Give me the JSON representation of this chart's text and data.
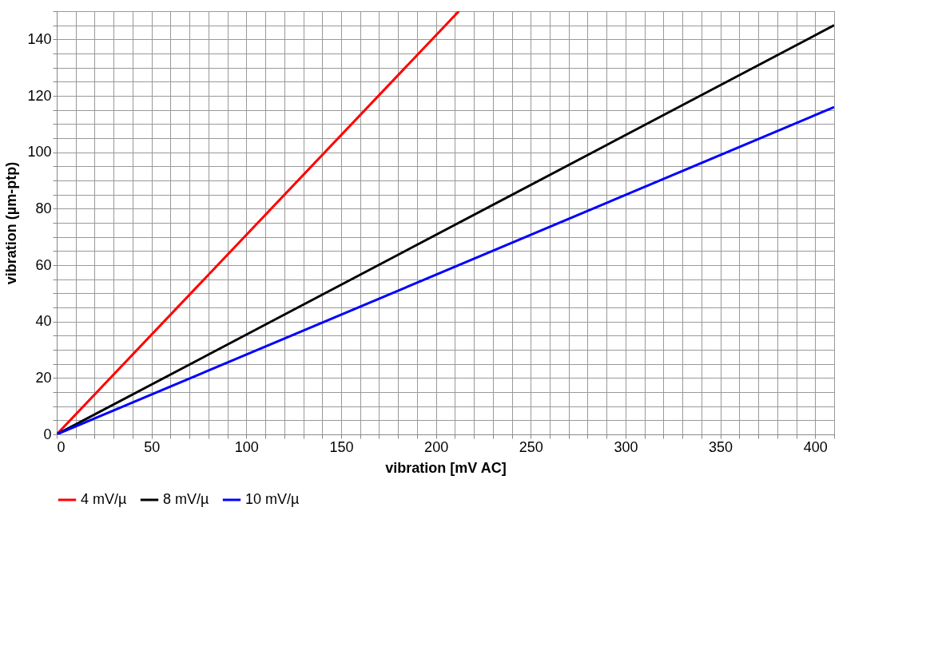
{
  "chart_data": {
    "type": "line",
    "xlabel": "vibration [mV AC]",
    "ylabel": "vibration (µm-ptp)",
    "series": [
      {
        "name": "4 mV/µ",
        "color": "#ff0000",
        "x": [
          0,
          212.1
        ],
        "values": [
          0,
          150
        ]
      },
      {
        "name": "8 mV/µ",
        "color": "#000000",
        "x": [
          0,
          410
        ],
        "values": [
          0,
          145
        ]
      },
      {
        "name": "10 mV/µ",
        "color": "#0000ff",
        "x": [
          0,
          410
        ],
        "values": [
          0,
          116
        ]
      }
    ],
    "xlim": [
      0,
      410
    ],
    "xticks": [
      0,
      {
        "value": 10,
        "label": null
      },
      {
        "value": 20,
        "label": null
      },
      {
        "value": 30,
        "label": null
      },
      {
        "value": 40,
        "label": null
      },
      50,
      {
        "value": 60,
        "label": null
      },
      {
        "value": 70,
        "label": null
      },
      {
        "value": 80,
        "label": null
      },
      {
        "value": 90,
        "label": null
      },
      100,
      {
        "value": 110,
        "label": null
      },
      {
        "value": 120,
        "label": null
      },
      {
        "value": 130,
        "label": null
      },
      {
        "value": 140,
        "label": null
      },
      150,
      {
        "value": 160,
        "label": null
      },
      {
        "value": 170,
        "label": null
      },
      {
        "value": 180,
        "label": null
      },
      {
        "value": 190,
        "label": null
      },
      200,
      {
        "value": 210,
        "label": null
      },
      {
        "value": 220,
        "label": null
      },
      {
        "value": 230,
        "label": null
      },
      {
        "value": 240,
        "label": null
      },
      250,
      {
        "value": 260,
        "label": null
      },
      {
        "value": 270,
        "label": null
      },
      {
        "value": 280,
        "label": null
      },
      {
        "value": 290,
        "label": null
      },
      300,
      {
        "value": 310,
        "label": null
      },
      {
        "value": 320,
        "label": null
      },
      {
        "value": 330,
        "label": null
      },
      {
        "value": 340,
        "label": null
      },
      350,
      {
        "value": 360,
        "label": null
      },
      {
        "value": 370,
        "label": null
      },
      {
        "value": 380,
        "label": null
      },
      {
        "value": 390,
        "label": null
      },
      400,
      {
        "value": 410,
        "label": null
      }
    ],
    "ylim": [
      0,
      150
    ],
    "yticks": [
      0,
      {
        "value": 5,
        "label": null
      },
      {
        "value": 10,
        "label": null
      },
      {
        "value": 15,
        "label": null
      },
      20,
      {
        "value": 25,
        "label": null
      },
      {
        "value": 30,
        "label": null
      },
      {
        "value": 35,
        "label": null
      },
      40,
      {
        "value": 45,
        "label": null
      },
      {
        "value": 50,
        "label": null
      },
      {
        "value": 55,
        "label": null
      },
      60,
      {
        "value": 65,
        "label": null
      },
      {
        "value": 70,
        "label": null
      },
      {
        "value": 75,
        "label": null
      },
      80,
      {
        "value": 85,
        "label": null
      },
      {
        "value": 90,
        "label": null
      },
      {
        "value": 95,
        "label": null
      },
      100,
      {
        "value": 105,
        "label": null
      },
      {
        "value": 110,
        "label": null
      },
      {
        "value": 115,
        "label": null
      },
      120,
      {
        "value": 125,
        "label": null
      },
      {
        "value": 130,
        "label": null
      },
      {
        "value": 135,
        "label": null
      },
      140,
      {
        "value": 145,
        "label": null
      },
      {
        "value": 150,
        "label": null
      }
    ],
    "grid": true,
    "legend": "bottom",
    "marker": "none",
    "line_style": "solid"
  }
}
